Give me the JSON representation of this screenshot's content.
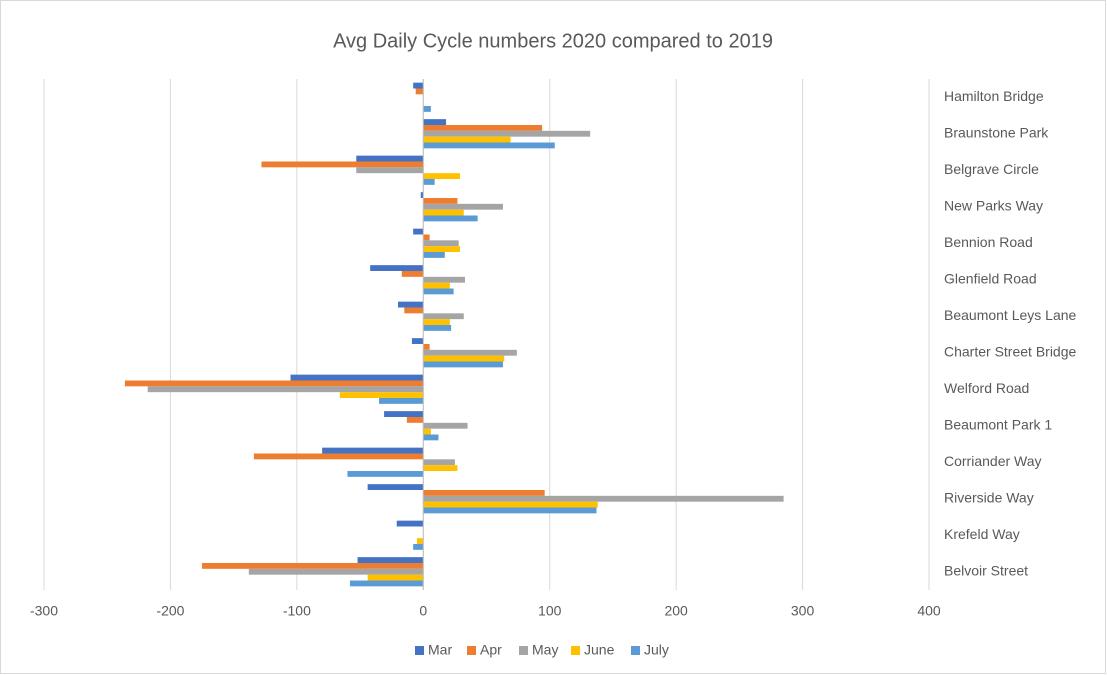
{
  "chart_data": {
    "type": "bar",
    "orientation": "horizontal",
    "title": "Avg Daily Cycle numbers 2020 compared to 2019",
    "categories": [
      "Hamilton Bridge",
      "Braunstone Park",
      "Belgrave Circle",
      "New Parks Way",
      "Bennion Road",
      "Glenfield Road",
      "Beaumont Leys Lane",
      "Charter Street Bridge",
      "Welford Road",
      "Beaumont Park 1",
      "Corriander Way",
      "Riverside Way",
      "Krefeld Way",
      "Belvoir Street"
    ],
    "series": [
      {
        "name": "Mar",
        "color": "#4472c4",
        "values": [
          -8,
          18,
          -53,
          -2,
          -8,
          -42,
          -20,
          -9,
          -105,
          -31,
          -80,
          -44,
          -21,
          -52
        ]
      },
      {
        "name": "Apr",
        "color": "#ed7d31",
        "values": [
          -6,
          94,
          -128,
          27,
          5,
          -17,
          -15,
          5,
          -236,
          -13,
          -134,
          96,
          0,
          -175
        ]
      },
      {
        "name": "May",
        "color": "#a5a5a5",
        "values": [
          0,
          132,
          -53,
          63,
          28,
          33,
          32,
          74,
          -218,
          35,
          25,
          285,
          0,
          -138
        ]
      },
      {
        "name": "June",
        "color": "#ffc000",
        "values": [
          0,
          69,
          29,
          32,
          29,
          21,
          21,
          64,
          -66,
          6,
          27,
          138,
          -5,
          -44
        ]
      },
      {
        "name": "July",
        "color": "#5b9bd5",
        "values": [
          6,
          104,
          9,
          43,
          17,
          24,
          22,
          63,
          -35,
          12,
          -60,
          137,
          -8,
          -58
        ]
      }
    ],
    "xlim": [
      -300,
      400
    ],
    "xticks": [
      -300,
      -200,
      -100,
      0,
      100,
      200,
      300,
      400
    ],
    "grid": true,
    "legend": "bottom"
  }
}
